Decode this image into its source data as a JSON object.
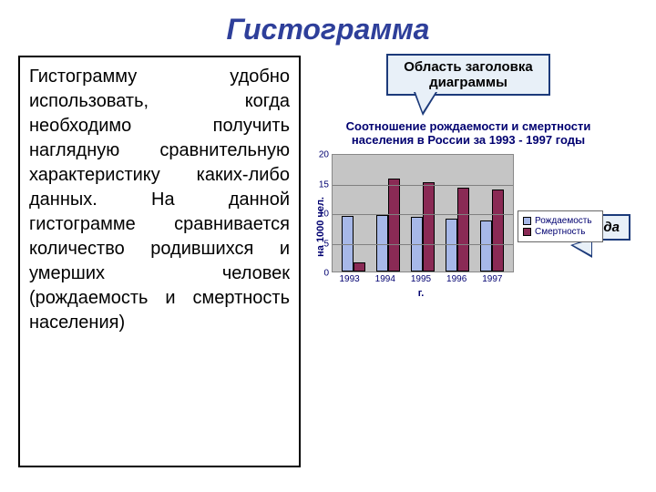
{
  "page_title": "Гистограмма",
  "page_title_color": "#2e3f9a",
  "description": "Гистограмму удобно использовать, когда необходимо получить наглядную сравнительную характеристику каких-либо данных. На данной гистограмме сравнивается количество родившихся и умерших человек (рождаемость и смертность населения)",
  "callouts": {
    "title_area": "Область заголовка диаграммы",
    "legend": "Легенда"
  },
  "chart": {
    "type": "bar",
    "title": "Соотношение рождаемости и смертности населения в России за 1993 - 1997 годы",
    "ylabel": "на 1000 чел.",
    "xlabel": "г.",
    "categories": [
      "1993",
      "1994",
      "1995",
      "1996",
      "1997"
    ],
    "series": [
      {
        "name": "Рождаемость",
        "color": "#a7b8e8",
        "values": [
          9.4,
          9.5,
          9.2,
          8.9,
          8.6
        ]
      },
      {
        "name": "Смертность",
        "color": "#8a2a55",
        "values": [
          1.5,
          15.7,
          15.1,
          14.2,
          13.8
        ]
      }
    ],
    "ylim": [
      0,
      20
    ],
    "ytick_step": 5,
    "background_color": "#c5c5c5",
    "grid_color": "#808080",
    "axis_text_color": "#000070"
  }
}
